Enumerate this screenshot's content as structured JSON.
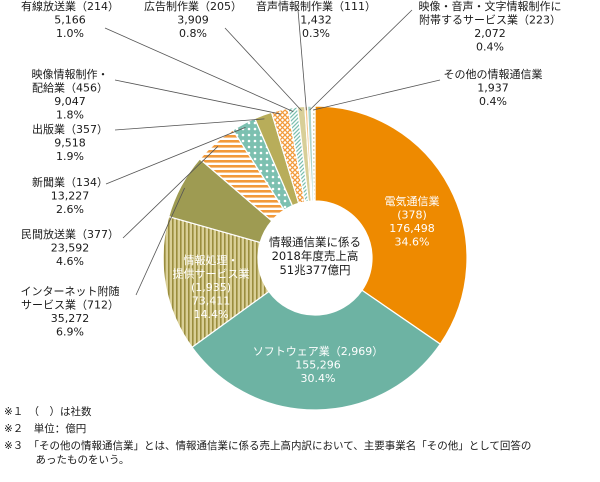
{
  "chart_data": {
    "type": "pie",
    "style": "donut",
    "center_label": [
      "情報通信業に係る",
      "2018年度売上高",
      "51兆377億円"
    ],
    "slices": [
      {
        "key": "telecom",
        "lines": [
          "電気通信業",
          "(378)",
          "176,498",
          "34.6%"
        ],
        "value": 176498,
        "percent": 34.6,
        "color": "#ee8a00",
        "pattern": "solid"
      },
      {
        "key": "software",
        "lines": [
          "ソフトウェア業（2,969）",
          "155,296",
          "30.4%"
        ],
        "value": 155296,
        "percent": 30.4,
        "color": "#6db3a3",
        "pattern": "solid"
      },
      {
        "key": "info_processing",
        "lines": [
          "情報処理・",
          "提供サービス業",
          "(1,935)",
          "73,411",
          "14.4%"
        ],
        "value": 73411,
        "percent": 14.4,
        "color": "#c9bd7a",
        "pattern": "vertical-lines"
      },
      {
        "key": "internet",
        "lines": [
          "インターネット附随",
          "サービス業（712）",
          "35,272",
          "6.9%"
        ],
        "value": 35272,
        "percent": 6.9,
        "color": "#9e9b52",
        "pattern": "solid"
      },
      {
        "key": "broadcast",
        "lines": [
          "民間放送業（377）",
          "23,592",
          "4.6%"
        ],
        "value": 23592,
        "percent": 4.6,
        "color": "#f29a3b",
        "pattern": "horizontal-lines"
      },
      {
        "key": "newspaper",
        "lines": [
          "新聞業（134）",
          "13,227",
          "2.6%"
        ],
        "value": 13227,
        "percent": 2.6,
        "color": "#7cc0b0",
        "pattern": "dots"
      },
      {
        "key": "publishing",
        "lines": [
          "出版業（357）",
          "9,518",
          "1.9%"
        ],
        "value": 9518,
        "percent": 1.9,
        "color": "#b8ad5a",
        "pattern": "solid"
      },
      {
        "key": "video",
        "lines": [
          "映像情報制作・",
          "配給業（456）",
          "9,047",
          "1.8%"
        ],
        "value": 9047,
        "percent": 1.8,
        "color": "#f29a3b",
        "pattern": "crosshatch"
      },
      {
        "key": "cable",
        "lines": [
          "有線放送業（214）",
          "5,166",
          "1.0%"
        ],
        "value": 5166,
        "percent": 1.0,
        "color": "#7cc0b0",
        "pattern": "diagonal"
      },
      {
        "key": "advertising",
        "lines": [
          "広告制作業（205）",
          "3,909",
          "0.8%"
        ],
        "value": 3909,
        "percent": 0.8,
        "color": "#d8cf98",
        "pattern": "solid"
      },
      {
        "key": "audio",
        "lines": [
          "音声情報制作業（111）",
          "1,432",
          "0.3%"
        ],
        "value": 1432,
        "percent": 0.3,
        "color": "#f6c88f",
        "pattern": "solid"
      },
      {
        "key": "attached_services",
        "lines": [
          "映像・音声・文字情報制作に",
          "附帯するサービス業（223）",
          "2,072",
          "0.4%"
        ],
        "value": 2072,
        "percent": 0.4,
        "color": "#a8d4c9",
        "pattern": "solid"
      },
      {
        "key": "other",
        "lines": [
          "その他の情報通信業",
          "1,937",
          "0.4%"
        ],
        "value": 1937,
        "percent": 0.4,
        "color": "#d8cf98",
        "pattern": "dots"
      }
    ]
  },
  "notes": [
    "※１　（　）は社数",
    "※２　単位：億円",
    "※３　「その他の情報通信業」とは、情報通信業に係る売上高内訳において、主要事業名「その他」として回答の",
    "　　　あったものをいう。"
  ]
}
